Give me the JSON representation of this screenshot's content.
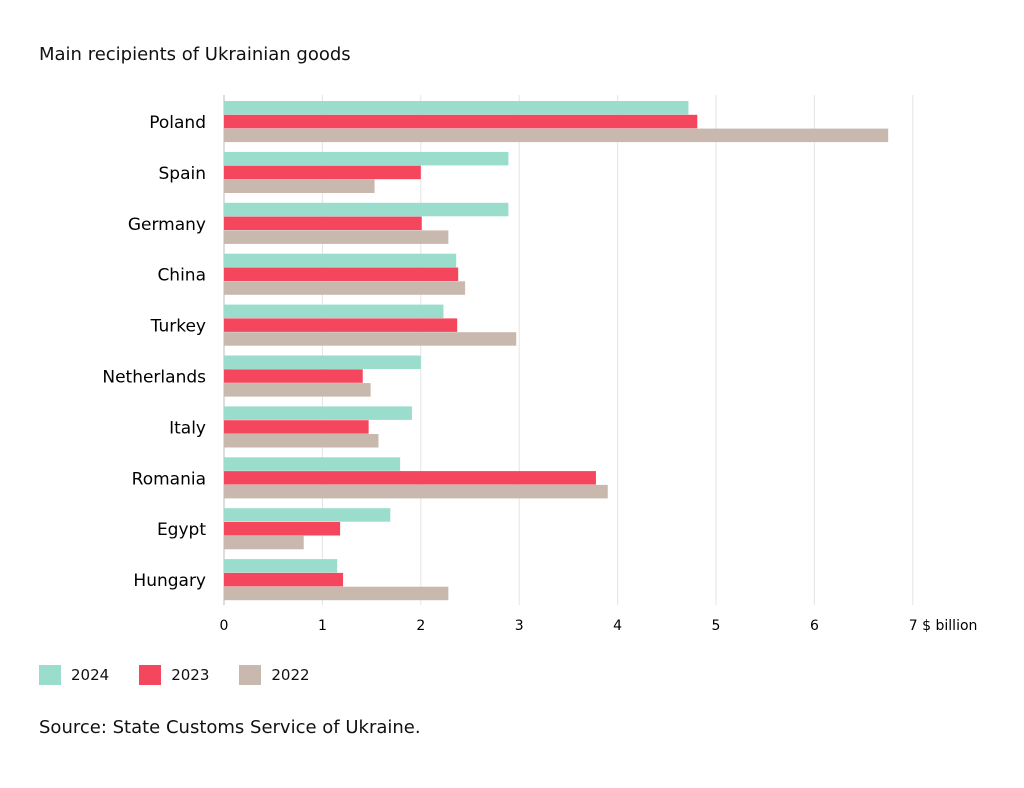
{
  "chart_data": {
    "type": "bar",
    "orientation": "horizontal",
    "title": "Main recipients of Ukrainian goods",
    "xlabel": "$ billion",
    "xlim": [
      0,
      7
    ],
    "xticks": [
      0,
      1,
      2,
      3,
      4,
      5,
      6,
      7
    ],
    "grid": true,
    "legend_position": "bottom-left",
    "categories": [
      "Poland",
      "Spain",
      "Germany",
      "China",
      "Turkey",
      "Netherlands",
      "Italy",
      "Romania",
      "Egypt",
      "Hungary"
    ],
    "series": [
      {
        "name": "2024",
        "color": "#9addcc",
        "values": [
          4.72,
          2.89,
          2.89,
          2.36,
          2.23,
          2.0,
          1.91,
          1.79,
          1.69,
          1.15
        ]
      },
      {
        "name": "2023",
        "color": "#f4475e",
        "values": [
          4.81,
          2.0,
          2.01,
          2.38,
          2.37,
          1.41,
          1.47,
          3.78,
          1.18,
          1.21
        ]
      },
      {
        "name": "2022",
        "color": "#c8b8ae",
        "values": [
          6.75,
          1.53,
          2.28,
          2.45,
          2.97,
          1.49,
          1.57,
          3.9,
          0.81,
          2.28
        ]
      }
    ],
    "source": "Source: State Customs Service of Ukraine."
  }
}
